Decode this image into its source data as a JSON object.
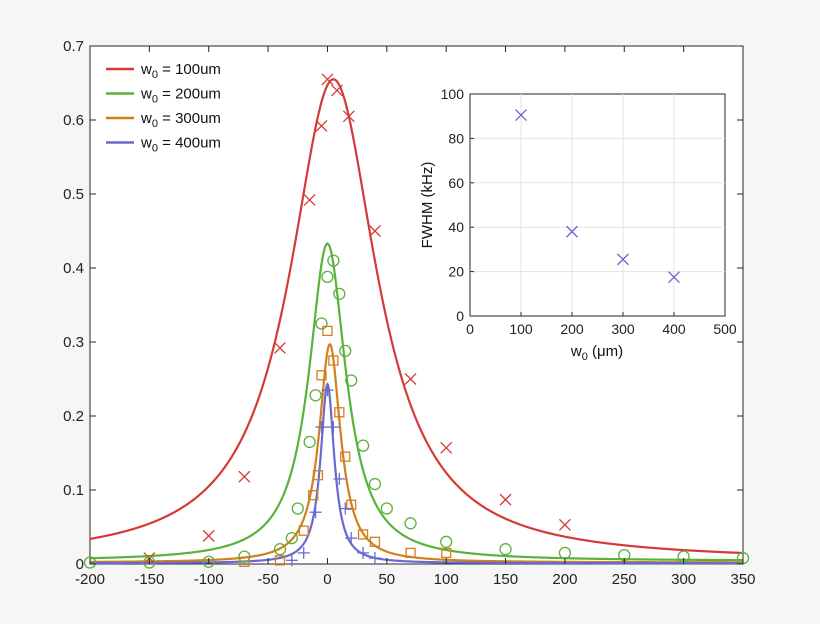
{
  "chart_data": [
    {
      "type": "line",
      "xlim": [
        -200,
        350
      ],
      "ylim": [
        0,
        0.7
      ],
      "x_ticks": [
        -200,
        -150,
        -100,
        -50,
        0,
        50,
        100,
        150,
        200,
        250,
        300,
        350
      ],
      "y_ticks": [
        0,
        0.1,
        0.2,
        0.3,
        0.4,
        0.5,
        0.6,
        0.7
      ],
      "x_tick_labels": [
        "-200",
        "-150",
        "-100",
        "-50",
        "0",
        "50",
        "100",
        "150",
        "200",
        "250",
        "300",
        "350"
      ],
      "y_tick_labels": [
        "0",
        "0.1",
        "0.2",
        "0.3",
        "0.4",
        "0.5",
        "0.6",
        "0.7"
      ],
      "grid": false,
      "legend_position": "top-left",
      "series": [
        {
          "name": "w0 = 100um",
          "legend_base": "w",
          "legend_sub": "0",
          "legend_rest": " = 100um",
          "color": "#d43a37",
          "marker": "x",
          "fit": {
            "amplitude": 0.655,
            "center": 5,
            "hwhm": 45,
            "baseline": 0.004
          },
          "x": [
            -150,
            -100,
            -70,
            -40,
            -15,
            -5,
            0,
            8,
            18,
            40,
            70,
            100,
            150,
            200
          ],
          "y": [
            0.008,
            0.038,
            0.118,
            0.292,
            0.492,
            0.592,
            0.655,
            0.64,
            0.605,
            0.45,
            0.25,
            0.157,
            0.087,
            0.053
          ]
        },
        {
          "name": "w0 = 200um",
          "legend_base": "w",
          "legend_sub": "0",
          "legend_rest": " = 200um",
          "color": "#5bb13a",
          "marker": "o",
          "fit": {
            "amplitude": 0.433,
            "center": 0,
            "hwhm": 19,
            "baseline": 0.004
          },
          "x": [
            -200,
            -150,
            -100,
            -70,
            -40,
            -30,
            -25,
            -15,
            -10,
            -5,
            0,
            5,
            10,
            15,
            20,
            30,
            40,
            50,
            70,
            100,
            150,
            200,
            250,
            300,
            350
          ],
          "y": [
            0.002,
            0.002,
            0.003,
            0.01,
            0.02,
            0.035,
            0.075,
            0.165,
            0.228,
            0.325,
            0.388,
            0.41,
            0.365,
            0.288,
            0.248,
            0.16,
            0.108,
            0.075,
            0.055,
            0.03,
            0.02,
            0.015,
            0.012,
            0.01,
            0.008
          ]
        },
        {
          "name": "w0 = 300um",
          "legend_base": "w",
          "legend_sub": "0",
          "legend_rest": " = 300um",
          "color": "#d27f1e",
          "marker": "square",
          "fit": {
            "amplitude": 0.297,
            "center": 2,
            "hwhm": 11,
            "baseline": 0.002
          },
          "x": [
            -70,
            -40,
            -20,
            -12,
            -8,
            -5,
            0,
            5,
            10,
            15,
            20,
            30,
            40,
            70,
            100
          ],
          "y": [
            0.003,
            0.005,
            0.045,
            0.093,
            0.12,
            0.255,
            0.315,
            0.275,
            0.205,
            0.145,
            0.08,
            0.04,
            0.03,
            0.015,
            0.015
          ]
        },
        {
          "name": "w0 = 400um",
          "legend_base": "w",
          "legend_sub": "0",
          "legend_rest": " = 400um",
          "color": "#6a69d2",
          "marker": "plus",
          "fit": {
            "amplitude": 0.243,
            "center": 0,
            "hwhm": 7,
            "baseline": 0.001
          },
          "x": [
            -30,
            -20,
            -10,
            -5,
            0,
            5,
            10,
            15,
            20,
            30,
            40
          ],
          "y": [
            0.005,
            0.015,
            0.07,
            0.185,
            0.235,
            0.185,
            0.115,
            0.075,
            0.035,
            0.015,
            0.008
          ]
        }
      ]
    },
    {
      "type": "scatter",
      "xlabel_base": "w",
      "xlabel_sub": "0",
      "xlabel_rest": "  (μm)",
      "ylabel": "FWHM (kHz)",
      "xlim": [
        0,
        500
      ],
      "ylim": [
        0,
        100
      ],
      "x_ticks": [
        0,
        100,
        200,
        300,
        400,
        500
      ],
      "y_ticks": [
        0,
        20,
        40,
        60,
        80,
        100
      ],
      "x_tick_labels": [
        "0",
        "100",
        "200",
        "300",
        "400",
        "500"
      ],
      "y_tick_labels": [
        "0",
        "20",
        "40",
        "60",
        "80",
        "100"
      ],
      "grid": true,
      "marker": "x",
      "color": "#6a69d2",
      "x": [
        100,
        200,
        300,
        400
      ],
      "y": [
        90.5,
        38,
        25.5,
        17.5
      ]
    }
  ]
}
